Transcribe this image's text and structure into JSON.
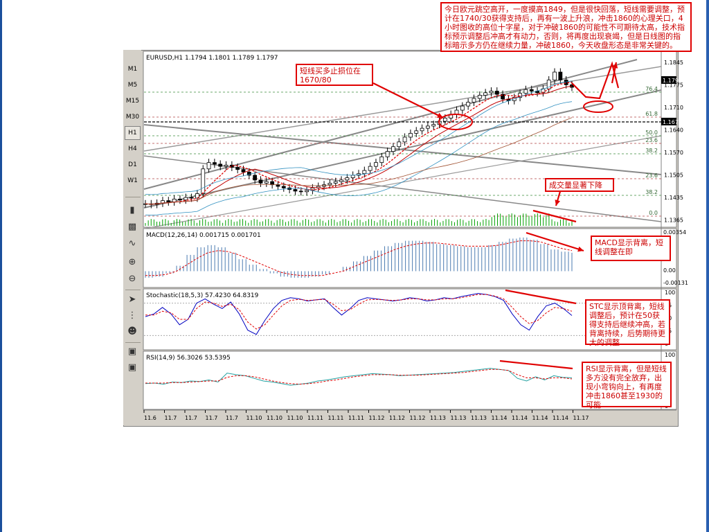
{
  "toolbar": {
    "timeframes": [
      "M1",
      "M5",
      "M15",
      "M30",
      "H1",
      "H4",
      "D1",
      "W1"
    ],
    "active": "H1"
  },
  "panes": {
    "price_header": "EURUSD,H1  1.1794 1.1801 1.1789 1.1797",
    "macd_header": "MACD(12,26,14)  0.001715  0.001701",
    "stoch_header": "Stochastic(18,5,3)  57.4230  64.8319",
    "rsi_header": "RSI(14,9)  56.3026  53.5395"
  },
  "price_axis": {
    "labels": [
      "1.1845",
      "1.1775",
      "1.1710",
      "1.1640",
      "1.1570",
      "1.1505",
      "1.1435",
      "1.1365"
    ],
    "current_price": "1.1797",
    "marked_price": "1.1673"
  },
  "fib_levels": [
    "76.4",
    "61.8",
    "50.0",
    "23.6",
    "38.2",
    "23.6",
    "38.2",
    "0.0"
  ],
  "macd_axis": [
    "0.00354",
    "0.00",
    "-0.00131"
  ],
  "stoch_axis": [
    "100",
    "75",
    "50",
    "25",
    "0"
  ],
  "rsi_axis": [
    "100",
    "75",
    "50",
    "25",
    "0"
  ],
  "time_labels": [
    "11.6",
    "11.7",
    "11.7",
    "11.7",
    "11.7",
    "11.10",
    "11.10",
    "11.10",
    "11.11",
    "11.11",
    "11.11",
    "11.12",
    "11.12",
    "11.12",
    "11.13",
    "11.13",
    "11.13",
    "11.14",
    "11.14",
    "11.14",
    "11.14",
    "11.17"
  ],
  "annotations": {
    "top": "今日欧元跳空高开，一度摸高1849，但是很快回落，短线需要调整，预计在1740/30获得支持后，再有一波上升浪，冲击1860的心理关口，4小时图收的高位十字星，对于冲破1860的可能性不可期待太高，技术指标预示调整后冲高才有动力，否则，将再度出现衰竭，但是日线图的指标暗示多方仍在继续力量，冲破1860，今天收盘形态是非常关键的。",
    "stop": "短线买多止损位在1670/80",
    "volume": "成交量显著下降",
    "macd": "MACD显示背离，短线调整在即",
    "stc": "STC显示顶背离，短线调整后，预计在50获得支持后继续冲高，若背离持续，后势期待更大的调整",
    "rsi": "RSI显示背离，但是短线多方没有完全放弃，出现小弯钩向上，有再度冲击1860甚至1930的可能"
  },
  "colors": {
    "annotation": "#e00000",
    "bull_candle": "#000000",
    "bear_candle": "#000000",
    "volume": "#00a000",
    "macd_hist": "#4a7ab0",
    "signal": "#e00000",
    "stoch_main": "#0000c0",
    "rsi_main": "#20a0a0"
  },
  "chart_data": {
    "type": "line",
    "symbol": "EURUSD",
    "timeframe": "H1",
    "ohlc_last": {
      "open": 1.1794,
      "high": 1.1801,
      "low": 1.1789,
      "close": 1.1797
    },
    "close_series": [
      1.143,
      1.1428,
      1.1432,
      1.144,
      1.1436,
      1.1445,
      1.1442,
      1.145,
      1.1448,
      1.1462,
      1.154,
      1.156,
      1.1555,
      1.1548,
      1.1552,
      1.1545,
      1.1538,
      1.153,
      1.152,
      1.1505,
      1.1495,
      1.15,
      1.149,
      1.1485,
      1.148,
      1.1475,
      1.147,
      1.1468,
      1.1472,
      1.148,
      1.1485,
      1.149,
      1.1495,
      1.15,
      1.1505,
      1.1512,
      1.152,
      1.1525,
      1.1535,
      1.1548,
      1.156,
      1.1578,
      1.1595,
      1.161,
      1.1625,
      1.164,
      1.1652,
      1.166,
      1.1668,
      1.1675,
      1.168,
      1.169,
      1.17,
      1.1712,
      1.1725,
      1.1738,
      1.175,
      1.1762,
      1.1772,
      1.178,
      1.1785,
      1.1775,
      1.176,
      1.1755,
      1.1765,
      1.1778,
      1.179,
      1.1785,
      1.178,
      1.1792,
      1.182,
      1.1845,
      1.182,
      1.1805,
      1.1797
    ],
    "ylim": [
      1.1365,
      1.188
    ],
    "macd": {
      "histogram": [
        -0.0006,
        -0.0005,
        -0.0002,
        0.0005,
        0.0015,
        0.0022,
        0.0024,
        0.0022,
        0.0017,
        0.0011,
        0.0006,
        0.0002,
        -0.0002,
        -0.0005,
        -0.0006,
        -0.0006,
        -0.0005,
        -0.0003,
        0.0,
        0.0004,
        0.0009,
        0.0014,
        0.0019,
        0.0023,
        0.0026,
        0.0028,
        0.0028,
        0.0027,
        0.0025,
        0.0024,
        0.0023,
        0.0022,
        0.0022,
        0.0024,
        0.0027,
        0.003,
        0.0031,
        0.0029,
        0.0025,
        0.002,
        0.0018,
        0.0017
      ],
      "signal": [
        -0.0004,
        -0.0004,
        -0.0003,
        0.0,
        0.0006,
        0.0012,
        0.0017,
        0.0019,
        0.0018,
        0.0015,
        0.0011,
        0.0007,
        0.0003,
        -0.0001,
        -0.0003,
        -0.0004,
        -0.0004,
        -0.0004,
        -0.0002,
        0.0,
        0.0004,
        0.0008,
        0.0012,
        0.0016,
        0.002,
        0.0023,
        0.0025,
        0.0026,
        0.0026,
        0.0025,
        0.0024,
        0.0023,
        0.0023,
        0.0023,
        0.0024,
        0.0026,
        0.0028,
        0.0028,
        0.0027,
        0.0024,
        0.0021,
        0.0019
      ],
      "ylim": [
        -0.00131,
        0.00354
      ]
    },
    "stochastic": {
      "main": [
        55,
        60,
        72,
        60,
        40,
        50,
        80,
        88,
        78,
        70,
        82,
        60,
        30,
        22,
        48,
        70,
        85,
        90,
        88,
        84,
        86,
        88,
        72,
        58,
        70,
        85,
        90,
        88,
        86,
        84,
        86,
        90,
        88,
        84,
        86,
        90,
        88,
        92,
        95,
        98,
        96,
        92,
        85,
        60,
        40,
        30,
        55,
        75,
        80,
        70,
        57
      ],
      "signal": [
        58,
        58,
        65,
        62,
        50,
        50,
        70,
        82,
        80,
        74,
        78,
        68,
        45,
        32,
        40,
        58,
        75,
        85,
        87,
        85,
        86,
        87,
        78,
        66,
        68,
        78,
        86,
        87,
        86,
        85,
        86,
        88,
        88,
        86,
        86,
        88,
        88,
        90,
        93,
        96,
        96,
        93,
        88,
        72,
        55,
        42,
        48,
        62,
        72,
        70,
        65
      ],
      "ylim": [
        0,
        100
      ]
    },
    "rsi": {
      "main": [
        45,
        46,
        44,
        48,
        47,
        50,
        49,
        52,
        48,
        65,
        62,
        60,
        55,
        50,
        48,
        45,
        42,
        44,
        46,
        50,
        52,
        55,
        58,
        60,
        62,
        64,
        63,
        62,
        60,
        61,
        62,
        63,
        64,
        65,
        66,
        68,
        70,
        72,
        74,
        72,
        70,
        55,
        50,
        58,
        52,
        60,
        57,
        56
      ],
      "signal": [
        46,
        46,
        46,
        47,
        47,
        48,
        49,
        50,
        50,
        57,
        60,
        60,
        58,
        54,
        50,
        47,
        45,
        44,
        45,
        47,
        50,
        52,
        55,
        58,
        60,
        62,
        62,
        62,
        61,
        61,
        61,
        62,
        63,
        64,
        65,
        66,
        68,
        70,
        72,
        72,
        70,
        62,
        56,
        56,
        54,
        56,
        56,
        54
      ],
      "ylim": [
        0,
        100
      ]
    }
  }
}
